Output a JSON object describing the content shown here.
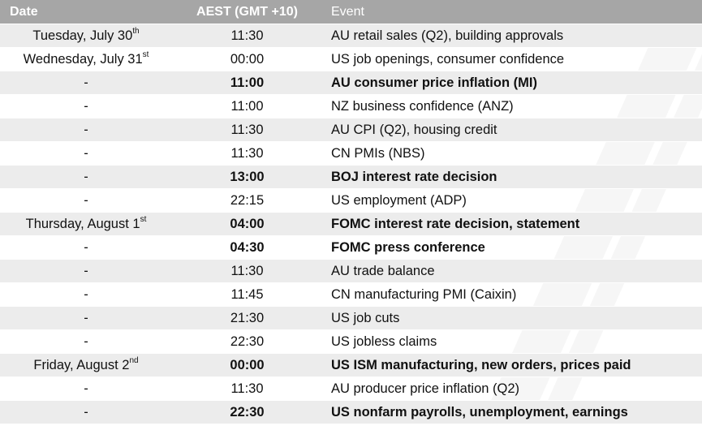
{
  "header": {
    "date": "Date",
    "time": "AEST (GMT +10)",
    "event": "Event"
  },
  "rows": [
    {
      "date": "Tuesday, July 30",
      "date_suffix": "th",
      "time": "11:30",
      "event": "AU retail sales (Q2), building approvals",
      "bold": false,
      "shade": true
    },
    {
      "date": "Wednesday, July 31",
      "date_suffix": "st",
      "time": "00:00",
      "event": "US job openings, consumer confidence",
      "bold": false,
      "shade": false
    },
    {
      "date": "-",
      "date_suffix": "",
      "time": "11:00",
      "event": "AU consumer price inflation (MI)",
      "bold": true,
      "shade": true
    },
    {
      "date": "-",
      "date_suffix": "",
      "time": "11:00",
      "event": "NZ business confidence (ANZ)",
      "bold": false,
      "shade": false
    },
    {
      "date": "-",
      "date_suffix": "",
      "time": "11:30",
      "event": "AU CPI (Q2), housing credit",
      "bold": false,
      "shade": true
    },
    {
      "date": "-",
      "date_suffix": "",
      "time": "11:30",
      "event": "CN PMIs (NBS)",
      "bold": false,
      "shade": false
    },
    {
      "date": "-",
      "date_suffix": "",
      "time": "13:00",
      "event": "BOJ interest rate decision",
      "bold": true,
      "shade": true
    },
    {
      "date": "-",
      "date_suffix": "",
      "time": "22:15",
      "event": "US employment (ADP)",
      "bold": false,
      "shade": false
    },
    {
      "date": "Thursday, August 1",
      "date_suffix": "st",
      "time": "04:00",
      "event": "FOMC interest rate decision, statement",
      "bold": true,
      "shade": true
    },
    {
      "date": "-",
      "date_suffix": "",
      "time": "04:30",
      "event": "FOMC press conference",
      "bold": true,
      "shade": false
    },
    {
      "date": "-",
      "date_suffix": "",
      "time": "11:30",
      "event": "AU trade balance",
      "bold": false,
      "shade": true
    },
    {
      "date": "-",
      "date_suffix": "",
      "time": "11:45",
      "event": "CN manufacturing PMI (Caixin)",
      "bold": false,
      "shade": false
    },
    {
      "date": "-",
      "date_suffix": "",
      "time": "21:30",
      "event": "US job cuts",
      "bold": false,
      "shade": true
    },
    {
      "date": "-",
      "date_suffix": "",
      "time": "22:30",
      "event": "US jobless claims",
      "bold": false,
      "shade": false
    },
    {
      "date": "Friday, August 2",
      "date_suffix": "nd",
      "time": "00:00",
      "event": "US ISM manufacturing, new orders, prices paid",
      "bold": true,
      "shade": true
    },
    {
      "date": "-",
      "date_suffix": "",
      "time": "11:30",
      "event": "AU producer price inflation (Q2)",
      "bold": false,
      "shade": false
    },
    {
      "date": "-",
      "date_suffix": "",
      "time": "22:30",
      "event": "US nonfarm payrolls, unemployment, earnings",
      "bold": true,
      "shade": true
    }
  ]
}
